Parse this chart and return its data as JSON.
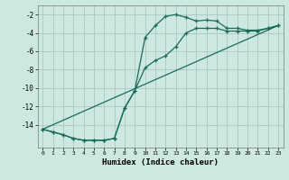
{
  "xlabel": "Humidex (Indice chaleur)",
  "bg_color": "#cce8e0",
  "grid_color": "#aac8c0",
  "line_color": "#1a6b5a",
  "xlim": [
    -0.5,
    23.5
  ],
  "ylim": [
    -16.5,
    -1.0
  ],
  "yticks": [
    -2,
    -4,
    -6,
    -8,
    -10,
    -12,
    -14
  ],
  "xticks": [
    0,
    1,
    2,
    3,
    4,
    5,
    6,
    7,
    8,
    9,
    10,
    11,
    12,
    13,
    14,
    15,
    16,
    17,
    18,
    19,
    20,
    21,
    22,
    23
  ],
  "line1_x": [
    0,
    1,
    2,
    3,
    4,
    5,
    6,
    7,
    8,
    9,
    10,
    11,
    12,
    13,
    14,
    15,
    16,
    17,
    18,
    19,
    20,
    21,
    22,
    23
  ],
  "line1_y": [
    -14.5,
    -14.8,
    -15.1,
    -15.5,
    -15.7,
    -15.7,
    -15.7,
    -15.5,
    -12.2,
    -10.3,
    -4.5,
    -3.2,
    -2.2,
    -2.0,
    -2.3,
    -2.7,
    -2.6,
    -2.7,
    -3.5,
    -3.5,
    -3.7,
    -3.7,
    -3.5,
    -3.2
  ],
  "line2_x": [
    0,
    1,
    2,
    3,
    4,
    5,
    6,
    7,
    8,
    9,
    10,
    11,
    12,
    13,
    14,
    15,
    16,
    17,
    18,
    19,
    20,
    21,
    22,
    23
  ],
  "line2_y": [
    -14.5,
    -14.8,
    -15.1,
    -15.5,
    -15.7,
    -15.7,
    -15.7,
    -15.5,
    -12.2,
    -10.3,
    -7.8,
    -7.0,
    -6.5,
    -5.5,
    -4.0,
    -3.5,
    -3.5,
    -3.5,
    -3.8,
    -3.8,
    -3.8,
    -3.8,
    -3.5,
    -3.2
  ],
  "line3_x": [
    0,
    23
  ],
  "line3_y": [
    -14.5,
    -3.2
  ]
}
